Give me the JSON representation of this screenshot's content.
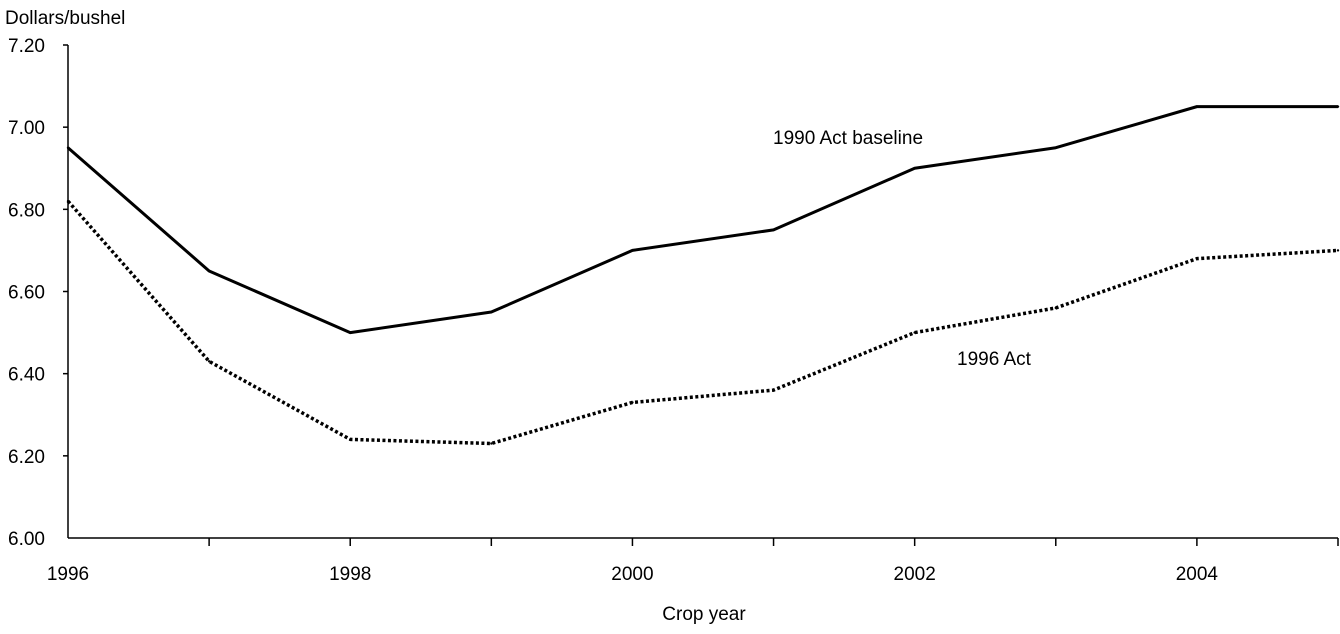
{
  "chart_data": {
    "type": "line",
    "title": "",
    "ylabel": "Dollars/bushel",
    "xlabel": "Crop year",
    "xlim": [
      1996,
      2005
    ],
    "ylim": [
      6.0,
      7.2
    ],
    "y_ticks": [
      "6.00",
      "6.20",
      "6.40",
      "6.60",
      "6.80",
      "7.00",
      "7.20"
    ],
    "x_tick_labels": [
      "1996",
      "1998",
      "2000",
      "2002",
      "2004"
    ],
    "x": [
      1996,
      1997,
      1998,
      1999,
      2000,
      2001,
      2002,
      2003,
      2004,
      2005
    ],
    "grid": false,
    "series": [
      {
        "name": "1990 Act baseline",
        "style": "solid",
        "color": "#000000",
        "values": [
          6.95,
          6.65,
          6.5,
          6.55,
          6.7,
          6.75,
          6.9,
          6.95,
          7.05,
          7.05
        ]
      },
      {
        "name": "1996 Act",
        "style": "dotted",
        "color": "#000000",
        "values": [
          6.82,
          6.43,
          6.24,
          6.23,
          6.33,
          6.36,
          6.5,
          6.56,
          6.68,
          6.7
        ]
      }
    ]
  }
}
